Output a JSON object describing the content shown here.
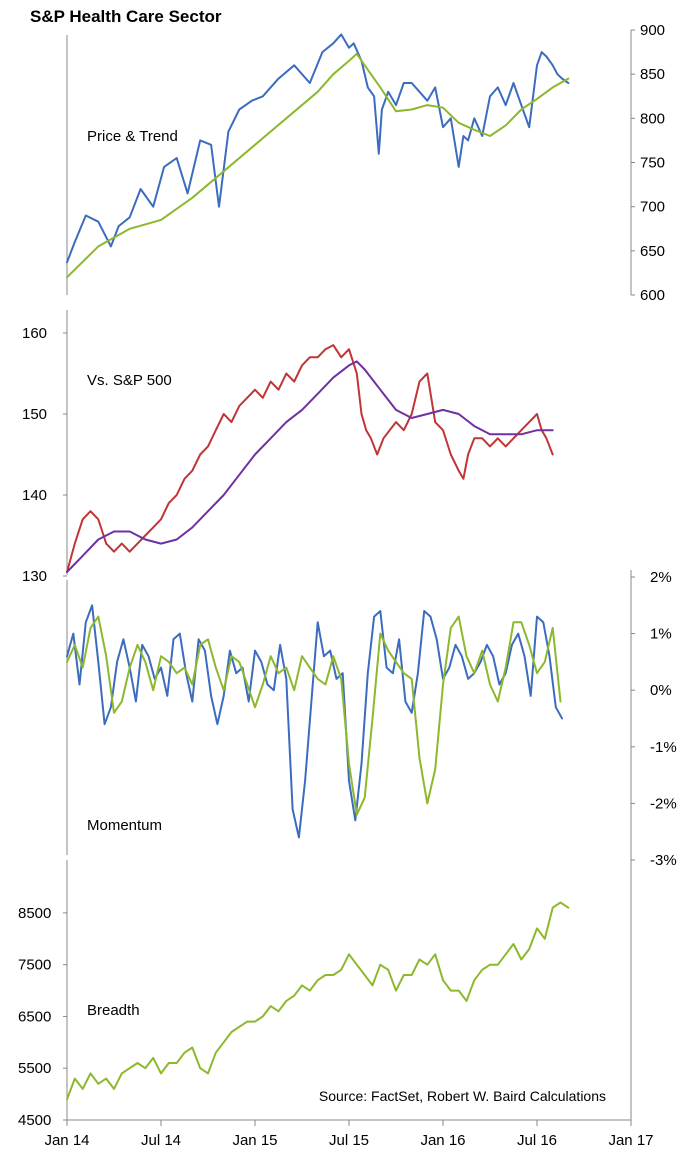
{
  "title": "S&P Health Care Sector",
  "source": "Source: FactSet, Robert W. Baird Calculations",
  "x_axis": {
    "ticks": [
      "Jan 14",
      "Jul 14",
      "Jan 15",
      "Jul 15",
      "Jan 16",
      "Jul 16",
      "Jan 17"
    ],
    "tick_values": [
      0,
      6,
      12,
      18,
      24,
      30,
      36
    ],
    "range_months": [
      0,
      36
    ]
  },
  "chart_data": [
    {
      "type": "line",
      "label": "Price & Trend",
      "y_axis_side": "right",
      "ylim": [
        600,
        900
      ],
      "yticks": [
        "900",
        "850",
        "800",
        "750",
        "700",
        "650",
        "600"
      ],
      "ytick_values": [
        900,
        850,
        800,
        750,
        700,
        650,
        600
      ],
      "series": [
        {
          "color": "#3c6cbf",
          "x": [
            0,
            0.5,
            1.2,
            2,
            2.8,
            3.3,
            4,
            4.7,
            5.5,
            6.2,
            7,
            7.7,
            8.5,
            9.2,
            9.7,
            10.3,
            11,
            11.8,
            12.5,
            13.5,
            14.5,
            15.5,
            16.3,
            17,
            17.5,
            18,
            18.3,
            18.8,
            19.2,
            19.6,
            19.9,
            20.1,
            20.5,
            21,
            21.5,
            22,
            22.5,
            23,
            23.5,
            24,
            24.5,
            25,
            25.3,
            25.6,
            26,
            26.5,
            27,
            27.5,
            28,
            28.5,
            29,
            29.5,
            30,
            30.3,
            30.6,
            31,
            31.3,
            31.6,
            32
          ],
          "y": [
            637,
            660,
            690,
            683,
            655,
            678,
            688,
            720,
            700,
            745,
            755,
            715,
            775,
            770,
            700,
            785,
            810,
            820,
            825,
            845,
            860,
            840,
            875,
            885,
            895,
            880,
            885,
            865,
            835,
            825,
            760,
            810,
            830,
            815,
            840,
            840,
            830,
            820,
            835,
            790,
            800,
            745,
            780,
            775,
            800,
            780,
            825,
            835,
            815,
            840,
            815,
            790,
            860,
            875,
            870,
            860,
            850,
            845,
            840
          ],
          "data_labels": []
        },
        {
          "color": "#8db82d",
          "x": [
            0,
            2,
            4,
            6,
            8,
            10,
            12,
            14,
            16,
            17,
            18,
            18.5,
            19,
            20,
            21,
            22,
            23,
            24,
            25,
            26,
            27,
            28,
            29,
            30,
            31,
            32
          ],
          "y": [
            620,
            655,
            675,
            685,
            710,
            740,
            770,
            800,
            830,
            850,
            865,
            873,
            860,
            835,
            808,
            810,
            815,
            812,
            795,
            787,
            780,
            792,
            810,
            822,
            835,
            845
          ],
          "data_labels": []
        }
      ]
    },
    {
      "type": "line",
      "label": "Vs. S&P 500",
      "y_axis_side": "left",
      "ylim": [
        130,
        160
      ],
      "yticks": [
        "160",
        "150",
        "140",
        "130"
      ],
      "ytick_values": [
        160,
        150,
        140,
        130
      ],
      "series": [
        {
          "color": "#c03535",
          "x": [
            0,
            0.5,
            1,
            1.5,
            2,
            2.5,
            3,
            3.5,
            4,
            4.5,
            5,
            5.5,
            6,
            6.5,
            7,
            7.5,
            8,
            8.5,
            9,
            9.5,
            10,
            10.5,
            11,
            11.5,
            12,
            12.5,
            13,
            13.5,
            14,
            14.5,
            15,
            15.5,
            16,
            16.5,
            17,
            17.5,
            18,
            18.5,
            18.8,
            19.1,
            19.4,
            19.8,
            20.2,
            20.6,
            21,
            21.5,
            22,
            22.5,
            23,
            23.5,
            24,
            24.5,
            25,
            25.3,
            25.6,
            26,
            26.5,
            27,
            27.5,
            28,
            28.5,
            29,
            29.5,
            30,
            30.3,
            30.6,
            31
          ],
          "y": [
            130.5,
            134,
            137,
            138,
            137,
            134,
            133,
            134,
            133,
            134,
            135,
            136,
            137,
            139,
            140,
            142,
            143,
            145,
            146,
            148,
            150,
            149,
            151,
            152,
            153,
            152,
            154,
            153,
            155,
            154,
            156,
            157,
            157,
            158,
            158.5,
            157,
            158,
            155,
            150,
            148,
            147,
            145,
            147,
            148,
            149,
            148,
            150,
            154,
            155,
            149,
            148,
            145,
            143,
            142,
            145,
            147,
            147,
            146,
            147,
            146,
            147,
            148,
            149,
            150,
            148,
            147,
            145
          ],
          "data_labels": []
        },
        {
          "color": "#7030a0",
          "x": [
            0,
            1,
            2,
            3,
            4,
            5,
            6,
            7,
            8,
            9,
            10,
            11,
            12,
            13,
            14,
            15,
            16,
            17,
            18,
            18.5,
            19,
            20,
            21,
            22,
            23,
            24,
            25,
            26,
            27,
            28,
            29,
            30,
            31
          ],
          "y": [
            130.5,
            132.5,
            134.5,
            135.5,
            135.5,
            134.5,
            134,
            134.5,
            136,
            138,
            140,
            142.5,
            145,
            147,
            149,
            150.5,
            152.5,
            154.5,
            156,
            156.5,
            155.5,
            153,
            150.5,
            149.5,
            150,
            150.5,
            150,
            148.5,
            147.5,
            147.5,
            147.5,
            148,
            148
          ]
        }
      ]
    },
    {
      "type": "line",
      "label": "Momentum",
      "y_axis_side": "right",
      "ylim": [
        -3,
        2
      ],
      "yticks": [
        "2%",
        "1%",
        "0%",
        "-1%",
        "-2%",
        "-3%"
      ],
      "ytick_values": [
        2,
        1,
        0,
        -1,
        -2,
        -3
      ],
      "series": [
        {
          "color": "#3c6cbf",
          "x": [
            0,
            0.4,
            0.8,
            1.2,
            1.6,
            2,
            2.4,
            2.8,
            3.2,
            3.6,
            4,
            4.4,
            4.8,
            5.2,
            5.6,
            6,
            6.4,
            6.8,
            7.2,
            7.6,
            8,
            8.4,
            8.8,
            9.2,
            9.6,
            10,
            10.4,
            10.8,
            11.2,
            11.6,
            12,
            12.4,
            12.8,
            13.2,
            13.6,
            14,
            14.4,
            14.8,
            15.2,
            15.6,
            16,
            16.4,
            16.8,
            17.2,
            17.6,
            18,
            18.4,
            18.8,
            19.2,
            19.6,
            20,
            20.4,
            20.8,
            21.2,
            21.6,
            22,
            22.4,
            22.8,
            23.2,
            23.6,
            24,
            24.4,
            24.8,
            25.2,
            25.6,
            26,
            26.4,
            26.8,
            27.2,
            27.6,
            28,
            28.4,
            28.8,
            29.2,
            29.6,
            30,
            30.4,
            30.8,
            31.2,
            31.6
          ],
          "y": [
            0.6,
            1.0,
            0.1,
            1.2,
            1.5,
            0.5,
            -0.6,
            -0.3,
            0.5,
            0.9,
            0.4,
            -0.2,
            0.8,
            0.6,
            0.2,
            0.4,
            -0.1,
            0.9,
            1.0,
            0.3,
            -0.2,
            0.9,
            0.7,
            -0.1,
            -0.6,
            -0.1,
            0.7,
            0.3,
            0.4,
            -0.2,
            0.7,
            0.5,
            0.1,
            0.0,
            0.8,
            0.2,
            -2.1,
            -2.6,
            -1.6,
            -0.2,
            1.2,
            0.6,
            0.7,
            0.2,
            0.3,
            -1.6,
            -2.3,
            -1.3,
            0.3,
            1.3,
            1.4,
            0.4,
            0.3,
            0.9,
            -0.2,
            -0.4,
            0.3,
            1.4,
            1.3,
            0.9,
            0.2,
            0.4,
            0.8,
            0.6,
            0.2,
            0.3,
            0.5,
            0.8,
            0.6,
            0.1,
            0.3,
            0.8,
            1.0,
            0.6,
            -0.1,
            1.3,
            1.2,
            0.6,
            -0.3,
            -0.5
          ],
          "data_labels": []
        },
        {
          "color": "#8db82d",
          "x": [
            0,
            0.5,
            1,
            1.5,
            2,
            2.5,
            3,
            3.5,
            4,
            4.5,
            5,
            5.5,
            6,
            6.5,
            7,
            7.5,
            8,
            8.5,
            9,
            9.5,
            10,
            10.5,
            11,
            11.5,
            12,
            12.5,
            13,
            13.5,
            14,
            14.5,
            15,
            15.5,
            16,
            16.5,
            17,
            17.5,
            18,
            18.5,
            19,
            19.5,
            20,
            20.5,
            21,
            21.5,
            22,
            22.5,
            23,
            23.5,
            24,
            24.5,
            25,
            25.5,
            26,
            26.5,
            27,
            27.5,
            28,
            28.5,
            29,
            29.5,
            30,
            30.5,
            31,
            31.5
          ],
          "y": [
            0.5,
            0.8,
            0.4,
            1.1,
            1.3,
            0.6,
            -0.4,
            -0.2,
            0.4,
            0.8,
            0.5,
            0.0,
            0.6,
            0.5,
            0.3,
            0.4,
            0.1,
            0.8,
            0.9,
            0.4,
            0.0,
            0.6,
            0.5,
            0.1,
            -0.3,
            0.1,
            0.6,
            0.3,
            0.4,
            0.0,
            0.6,
            0.4,
            0.2,
            0.1,
            0.6,
            0.2,
            -1.3,
            -2.2,
            -1.9,
            -0.5,
            1.0,
            0.7,
            0.5,
            0.3,
            0.2,
            -1.2,
            -2.0,
            -1.4,
            0.1,
            1.1,
            1.3,
            0.6,
            0.3,
            0.7,
            0.1,
            -0.2,
            0.4,
            1.2,
            1.2,
            0.8,
            0.3,
            0.5,
            1.1,
            -0.2
          ]
        }
      ]
    },
    {
      "type": "line",
      "label": "Breadth",
      "y_axis_side": "left",
      "ylim": [
        4500,
        9000
      ],
      "yticks": [
        "8500",
        "7500",
        "6500",
        "5500",
        "4500"
      ],
      "ytick_values": [
        8500,
        7500,
        6500,
        5500,
        4500
      ],
      "series": [
        {
          "color": "#8db82d",
          "x": [
            0,
            0.5,
            1,
            1.5,
            2,
            2.5,
            3,
            3.5,
            4,
            4.5,
            5,
            5.5,
            6,
            6.5,
            7,
            7.5,
            8,
            8.5,
            9,
            9.5,
            10,
            10.5,
            11,
            11.5,
            12,
            12.5,
            13,
            13.5,
            14,
            14.5,
            15,
            15.5,
            16,
            16.5,
            17,
            17.5,
            18,
            18.5,
            19,
            19.5,
            20,
            20.5,
            21,
            21.5,
            22,
            22.5,
            23,
            23.5,
            24,
            24.5,
            25,
            25.5,
            26,
            26.5,
            27,
            27.5,
            28,
            28.5,
            29,
            29.5,
            30,
            30.5,
            31,
            31.5,
            32
          ],
          "y": [
            4900,
            5300,
            5100,
            5400,
            5200,
            5300,
            5100,
            5400,
            5500,
            5600,
            5500,
            5700,
            5400,
            5600,
            5600,
            5800,
            5900,
            5500,
            5400,
            5800,
            6000,
            6200,
            6300,
            6400,
            6400,
            6500,
            6700,
            6600,
            6800,
            6900,
            7100,
            7000,
            7200,
            7300,
            7300,
            7400,
            7700,
            7500,
            7300,
            7100,
            7500,
            7400,
            7000,
            7300,
            7300,
            7600,
            7500,
            7700,
            7200,
            7000,
            7000,
            6800,
            7200,
            7400,
            7500,
            7500,
            7700,
            7900,
            7600,
            7800,
            8200,
            8000,
            8600,
            8700,
            8600
          ],
          "data_labels": []
        }
      ]
    }
  ]
}
